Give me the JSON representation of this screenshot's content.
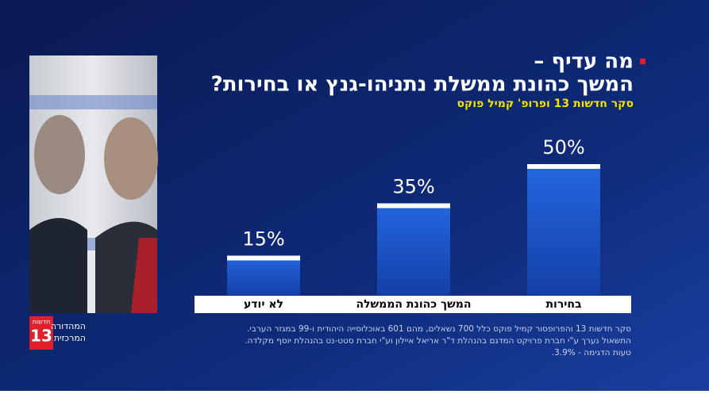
{
  "chart_data": {
    "type": "bar",
    "title": [
      "מה עדיף –",
      "המשך כהונת ממשלת נתניהו-גנץ או בחירות?"
    ],
    "subtitle": "סקר חדשות 13 ופרופ' קמיל פוקס",
    "categories": [
      "בחירות",
      "המשך כהונת הממשלה",
      "לא יודע"
    ],
    "values": [
      50,
      35,
      15
    ],
    "value_labels": [
      "50%",
      "35%",
      "15%"
    ],
    "color": "#1f5ad0",
    "notes": [
      "סקר חדשות 13 והפרופסור קמיל פוקס  כלל 700 נשאלים, מהם 601 באוכלוסייה היהודית ו-99 במגזר הערבי.",
      "התשאול נערך ע\"י חברת פרויקט המדגם בהנהלת ד\"ר אריאל איילון וע\"י חברת סטט-נט בהנהלת יוסף מקלדה.",
      "טעות הדגימה - 3.9%."
    ]
  },
  "logo": {
    "channel": "חדשות",
    "number": "13",
    "program": [
      "המהדורה",
      "המרכזית"
    ]
  }
}
